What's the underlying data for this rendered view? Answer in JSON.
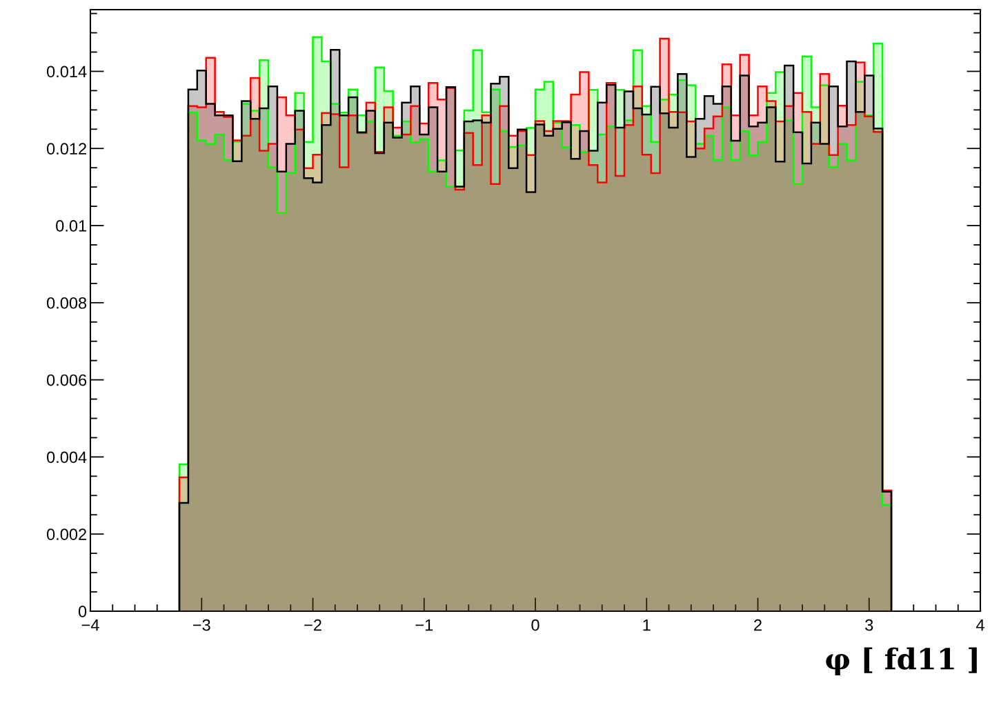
{
  "chart_data": {
    "type": "histogram",
    "xlabel": "φ [ fd11 ]",
    "bins": [
      -3.2,
      -3.12,
      -3.04,
      -2.96,
      -2.88,
      -2.8,
      -2.72,
      -2.64,
      -2.56,
      -2.48,
      -2.4,
      -2.32,
      -2.24,
      -2.16,
      -2.08,
      -2,
      -1.92,
      -1.84,
      -1.76,
      -1.68,
      -1.6,
      -1.52,
      -1.44,
      -1.36,
      -1.28,
      -1.2,
      -1.12,
      -1.04,
      -0.96,
      -0.88,
      -0.8,
      -0.72,
      -0.64,
      -0.56,
      -0.48,
      -0.4,
      -0.32,
      -0.24,
      -0.16,
      -0.08,
      0,
      0.08,
      0.16,
      0.24,
      0.32,
      0.4,
      0.48,
      0.56,
      0.64,
      0.72,
      0.8,
      0.88,
      0.96,
      1.04,
      1.12,
      1.2,
      1.28,
      1.36,
      1.44,
      1.52,
      1.6,
      1.68,
      1.76,
      1.84,
      1.92,
      2,
      2.08,
      2.16,
      2.24,
      2.32,
      2.4,
      2.48,
      2.56,
      2.64,
      2.72,
      2.8,
      2.88,
      2.96,
      3.04,
      3.12,
      3.2
    ],
    "series": [
      {
        "color": "#00ff00",
        "values": [
          0.00381,
          0.01293,
          0.01221,
          0.01212,
          0.01236,
          0.0117,
          0.01218,
          0.01316,
          0.01298,
          0.01429,
          0.01151,
          0.01033,
          0.01137,
          0.01344,
          0.01217,
          0.01489,
          0.01426,
          0.01316,
          0.01293,
          0.01353,
          0.01286,
          0.0127,
          0.0141,
          0.01349,
          0.01233,
          0.0127,
          0.01216,
          0.01224,
          0.0114,
          0.01169,
          0.01101,
          0.01195,
          0.01299,
          0.01455,
          0.01294,
          0.01353,
          0.01245,
          0.01204,
          0.01208,
          0.01253,
          0.01353,
          0.01373,
          0.01267,
          0.01203,
          0.01261,
          0.01191,
          0.01352,
          0.01236,
          0.01257,
          0.01352,
          0.01273,
          0.01455,
          0.0131,
          0.01217,
          0.01327,
          0.0134,
          0.01377,
          0.01364,
          0.01212,
          0.01233,
          0.0117,
          0.01307,
          0.0117,
          0.01245,
          0.01182,
          0.01217,
          0.01344,
          0.01398,
          0.01273,
          0.01108,
          0.01439,
          0.01307,
          0.01364,
          0.01152,
          0.01212,
          0.01169,
          0.01373,
          0.01286,
          0.01472,
          0.00276
        ]
      },
      {
        "color": "#ff0000",
        "values": [
          0.00347,
          0.0131,
          0.01307,
          0.01435,
          0.01295,
          0.01282,
          0.01221,
          0.01233,
          0.01383,
          0.01194,
          0.01212,
          0.01333,
          0.01286,
          0.01249,
          0.01149,
          0.01184,
          0.01292,
          0.01289,
          0.01151,
          0.01286,
          0.0124,
          0.01319,
          0.01191,
          0.01307,
          0.01254,
          0.01236,
          0.0131,
          0.01265,
          0.0137,
          0.01327,
          0.01357,
          0.01093,
          0.0124,
          0.01157,
          0.01286,
          0.01108,
          0.0131,
          0.01233,
          0.01245,
          0.01183,
          0.01271,
          0.01245,
          0.01271,
          0.01271,
          0.0134,
          0.01398,
          0.01157,
          0.01112,
          0.0137,
          0.01129,
          0.01261,
          0.01361,
          0.01184,
          0.01136,
          0.01485,
          0.01295,
          0.01294,
          0.0127,
          0.012,
          0.01252,
          0.01283,
          0.01418,
          0.01286,
          0.01443,
          0.01286,
          0.01361,
          0.01323,
          0.0127,
          0.0131,
          0.01344,
          0.01295,
          0.01212,
          0.01393,
          0.01183,
          0.01311,
          0.01261,
          0.01423,
          0.01283,
          0.01243,
          0.00313
        ]
      },
      {
        "color": "#000000",
        "values": [
          0.00281,
          0.01353,
          0.01402,
          0.01316,
          0.01286,
          0.01286,
          0.01167,
          0.01323,
          0.01277,
          0.01304,
          0.01361,
          0.0114,
          0.01212,
          0.01298,
          0.01123,
          0.01112,
          0.01261,
          0.01456,
          0.01286,
          0.01333,
          0.01242,
          0.01298,
          0.01188,
          0.01267,
          0.01228,
          0.01319,
          0.01361,
          0.01236,
          0.01307,
          0.0114,
          0.01359,
          0.01101,
          0.0127,
          0.01273,
          0.01267,
          0.01368,
          0.01386,
          0.01149,
          0.01249,
          0.01087,
          0.01262,
          0.01233,
          0.01251,
          0.01268,
          0.01173,
          0.01245,
          0.01194,
          0.01319,
          0.01365,
          0.01254,
          0.01348,
          0.01304,
          0.01288,
          0.0136,
          0.01291,
          0.01254,
          0.01393,
          0.01178,
          0.01277,
          0.01336,
          0.01316,
          0.01361,
          0.0122,
          0.01389,
          0.01257,
          0.01267,
          0.01307,
          0.01166,
          0.01415,
          0.01242,
          0.01161,
          0.01267,
          0.01212,
          0.01361,
          0.01257,
          0.01426,
          0.01295,
          0.01389,
          0.01252,
          0.0031
        ]
      }
    ],
    "xlim": [
      -4,
      4
    ],
    "xticks": [
      {
        "value": -4,
        "label": "−4"
      },
      {
        "value": -3,
        "label": "−3"
      },
      {
        "value": -2,
        "label": "−2"
      },
      {
        "value": -1,
        "label": "−1"
      },
      0,
      1,
      2,
      3,
      4
    ],
    "ylim": [
      0,
      0.0156
    ],
    "yticks": [
      0,
      0.002,
      0.004,
      0.006,
      0.008,
      0.01,
      0.012,
      0.014
    ],
    "grid": false,
    "legend": false
  }
}
